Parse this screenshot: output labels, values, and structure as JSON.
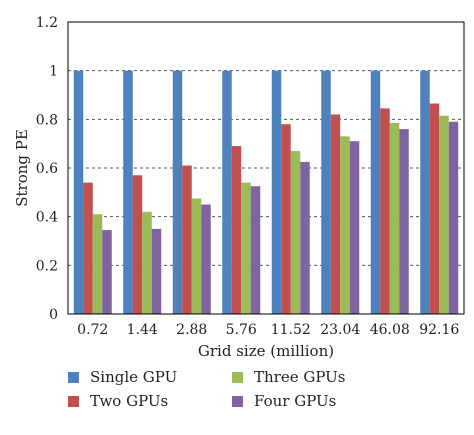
{
  "chart_data": {
    "type": "bar",
    "title": "",
    "xlabel": "Grid size (million)",
    "ylabel": "Strong PE",
    "ylim": [
      0,
      1.2
    ],
    "yticks": [
      "0",
      "0.2",
      "0.4",
      "0.6",
      "0.8",
      "1",
      "1.2"
    ],
    "grid": "horizontal dashed",
    "legend_position": "bottom",
    "categories": [
      "0.72",
      "1.44",
      "2.88",
      "5.76",
      "11.52",
      "23.04",
      "46.08",
      "92.16"
    ],
    "series": [
      {
        "name": "Single GPU",
        "color": "#4f81bd",
        "values": [
          1,
          1,
          1,
          1,
          1,
          1,
          1,
          1
        ]
      },
      {
        "name": "Two GPUs",
        "color": "#c0504d",
        "values": [
          0.54,
          0.57,
          0.61,
          0.69,
          0.78,
          0.82,
          0.845,
          0.865
        ]
      },
      {
        "name": "Three GPUs",
        "color": "#9bbb59",
        "values": [
          0.41,
          0.42,
          0.475,
          0.54,
          0.67,
          0.73,
          0.785,
          0.815
        ]
      },
      {
        "name": "Four GPUs",
        "color": "#8064a2",
        "values": [
          0.345,
          0.35,
          0.45,
          0.525,
          0.625,
          0.71,
          0.76,
          0.79
        ]
      }
    ]
  }
}
